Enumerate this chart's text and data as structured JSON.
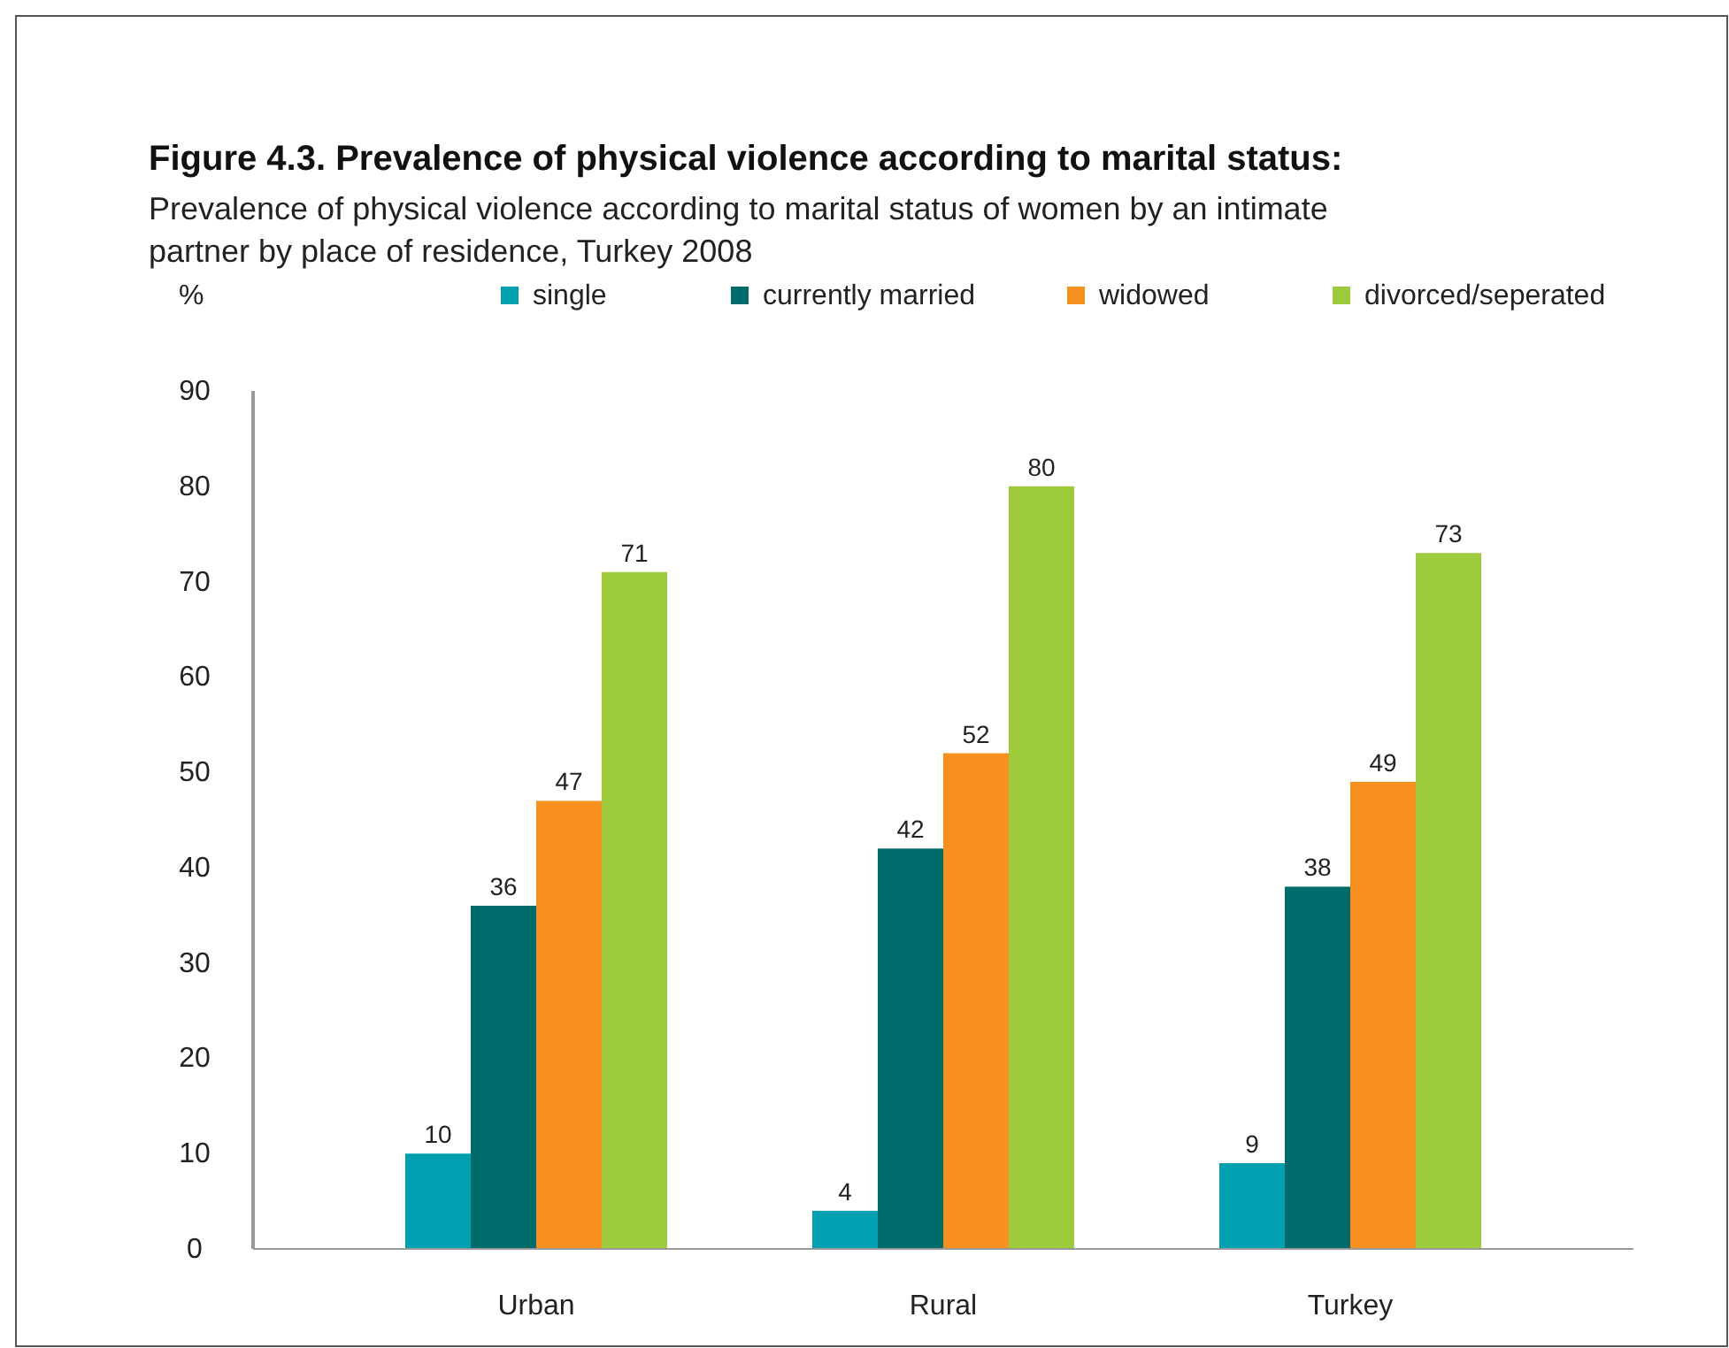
{
  "chart_data": {
    "type": "bar",
    "title": "Figure 4.3. Prevalence of physical violence according to marital status:",
    "subtitle": "Prevalence of physical violence according to marital status of women by an intimate partner by place of residence, Turkey 2008",
    "ylabel": "%",
    "categories": [
      "Urban",
      "Rural",
      "Turkey"
    ],
    "series": [
      {
        "name": "single",
        "color": "#00a0b0",
        "values": [
          10,
          4,
          9
        ]
      },
      {
        "name": "currently married",
        "color": "#006b6b",
        "values": [
          36,
          42,
          38
        ]
      },
      {
        "name": "widowed",
        "color": "#f7901e",
        "values": [
          47,
          52,
          49
        ]
      },
      {
        "name": "divorced/seperated",
        "color": "#9dcb3c",
        "values": [
          71,
          80,
          73
        ]
      }
    ],
    "ylim": [
      0,
      90
    ],
    "yticks": [
      0,
      10,
      20,
      30,
      40,
      50,
      60,
      70,
      80,
      90
    ],
    "legend": "top",
    "data_labels": true
  }
}
